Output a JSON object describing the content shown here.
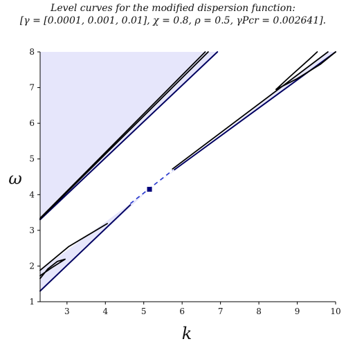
{
  "chart_data": {
    "type": "line",
    "title": "Level curves for the modified dispersion function:",
    "subtitle": "[γ = [0.0001, 0.001, 0.01], χ = 0.8, ρ = 0.5, γPcr = 0.002641].",
    "xlabel": "k",
    "ylabel": "ω",
    "xlim": [
      2.3,
      10
    ],
    "ylim": [
      1,
      8
    ],
    "xticks": [
      3,
      4,
      5,
      6,
      7,
      8,
      9,
      10
    ],
    "yticks": [
      1,
      2,
      3,
      4,
      5,
      6,
      7,
      8
    ],
    "grid": false,
    "colors": {
      "region_fill": "#e6e6fb",
      "boundary": "#000060",
      "contour": "#000000",
      "point": "#00007a",
      "dash": "#2233cc"
    },
    "regions": [
      {
        "name": "upper-left region",
        "points": [
          [
            2.3,
            3.3
          ],
          [
            6.92,
            8
          ],
          [
            2.3,
            8
          ]
        ]
      },
      {
        "name": "lower-left wedge",
        "points": [
          [
            2.3,
            1.3
          ],
          [
            5.15,
            4.15
          ],
          [
            2.3,
            1.88
          ]
        ]
      },
      {
        "name": "upper-right wedge",
        "points": [
          [
            5.15,
            4.15
          ],
          [
            10,
            8
          ],
          [
            9.8,
            8
          ]
        ]
      }
    ],
    "series": [
      {
        "points": [
          [
            2.3,
            3.3
          ],
          [
            6.92,
            8
          ]
        ]
      },
      {
        "points": [
          [
            2.3,
            3.32
          ],
          [
            6.68,
            8
          ]
        ]
      },
      {
        "points": [
          [
            2.3,
            3.34
          ],
          [
            6.6,
            8
          ]
        ]
      },
      {
        "points": [
          [
            2.3,
            1.3
          ],
          [
            4.65,
            3.71
          ]
        ]
      },
      {
        "points": [
          [
            2.3,
            1.88
          ],
          [
            3.05,
            2.55
          ],
          [
            4.05,
            3.19
          ]
        ]
      },
      {
        "points": [
          [
            2.3,
            1.65
          ],
          [
            2.5,
            1.92
          ],
          [
            2.75,
            2.13
          ],
          [
            2.95,
            2.19
          ],
          [
            2.6,
            1.95
          ],
          [
            2.3,
            1.73
          ]
        ]
      },
      {
        "points": [
          [
            5.8,
            4.7
          ],
          [
            10,
            8
          ]
        ]
      },
      {
        "points": [
          [
            5.75,
            4.72
          ],
          [
            9.8,
            8
          ]
        ]
      },
      {
        "points": [
          [
            8.45,
            6.95
          ],
          [
            8.8,
            7.3
          ],
          [
            9.3,
            7.78
          ],
          [
            9.52,
            8
          ]
        ]
      },
      {
        "points": [
          [
            8.45,
            6.95
          ],
          [
            9.0,
            7.25
          ],
          [
            9.6,
            7.65
          ],
          [
            10,
            8
          ]
        ]
      }
    ],
    "dashed_line": {
      "points": [
        [
          4.65,
          3.75
        ],
        [
          5.75,
          4.68
        ]
      ]
    },
    "marker": {
      "x": 5.15,
      "y": 4.15
    }
  }
}
